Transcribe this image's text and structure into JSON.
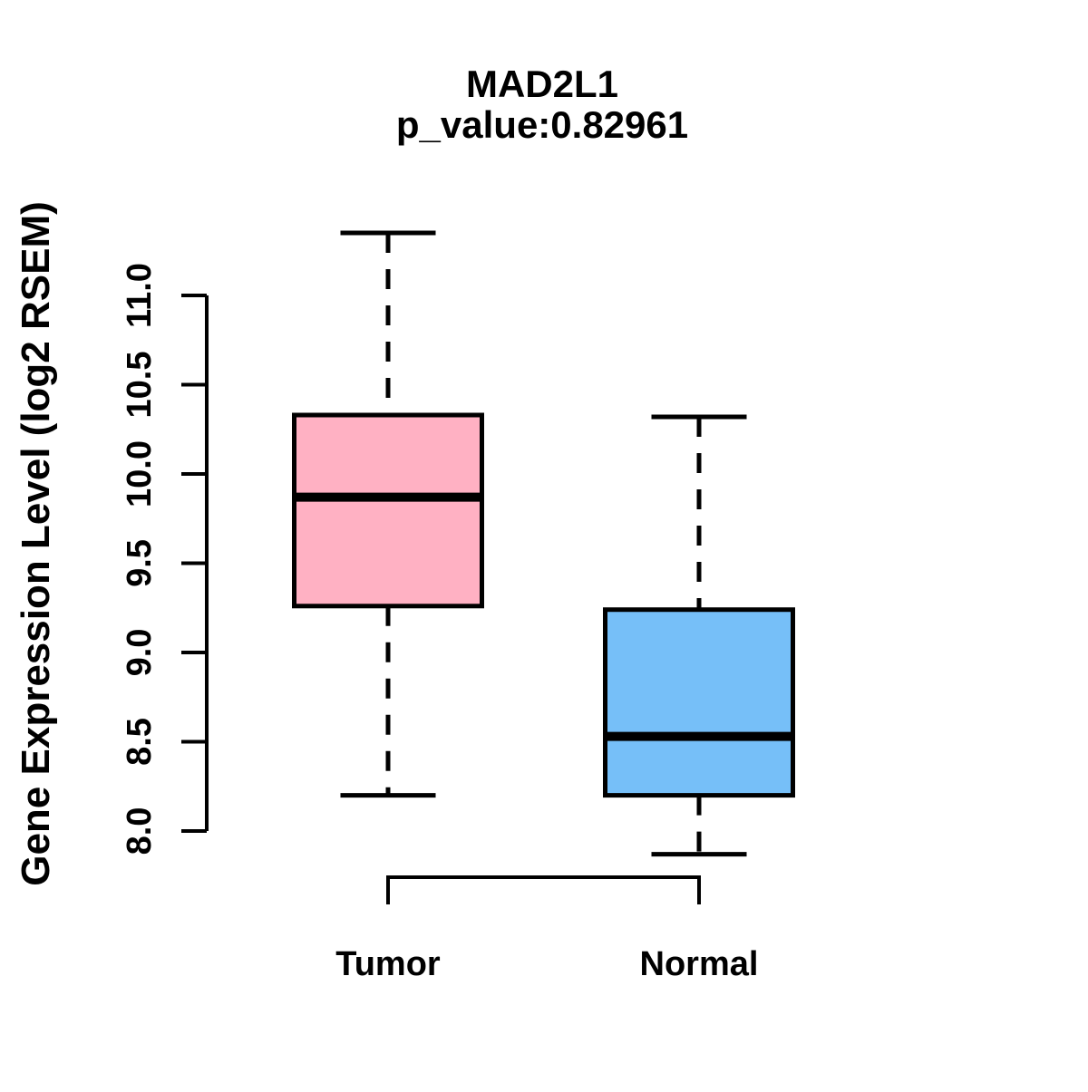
{
  "chart_data": {
    "type": "boxplot",
    "title": "MAD2L1",
    "subtitle": "p_value:0.82961",
    "ylabel": "Gene Expression Level (log2 RSEM)",
    "ylim": [
      8.0,
      11.0
    ],
    "yticks": [
      {
        "value": 8.0,
        "label": "8.0"
      },
      {
        "value": 8.5,
        "label": "8.5"
      },
      {
        "value": 9.0,
        "label": "9.0"
      },
      {
        "value": 9.5,
        "label": "9.5"
      },
      {
        "value": 10.0,
        "label": "10.0"
      },
      {
        "value": 10.5,
        "label": "10.5"
      },
      {
        "value": 11.0,
        "label": "11.0"
      }
    ],
    "grid": false,
    "legend": "none",
    "groups": [
      {
        "label": "Tumor",
        "fill_color": "#ffb1c3",
        "lower_whisker": 8.2,
        "q1": 9.26,
        "median": 9.87,
        "q3": 10.33,
        "upper_whisker": 11.35
      },
      {
        "label": "Normal",
        "fill_color": "#76bff8",
        "lower_whisker": 7.87,
        "q1": 8.2,
        "median": 8.53,
        "q3": 9.24,
        "upper_whisker": 10.32
      }
    ],
    "annotation_colors": {
      "stroke": "#000000",
      "background": "#ffffff"
    }
  }
}
